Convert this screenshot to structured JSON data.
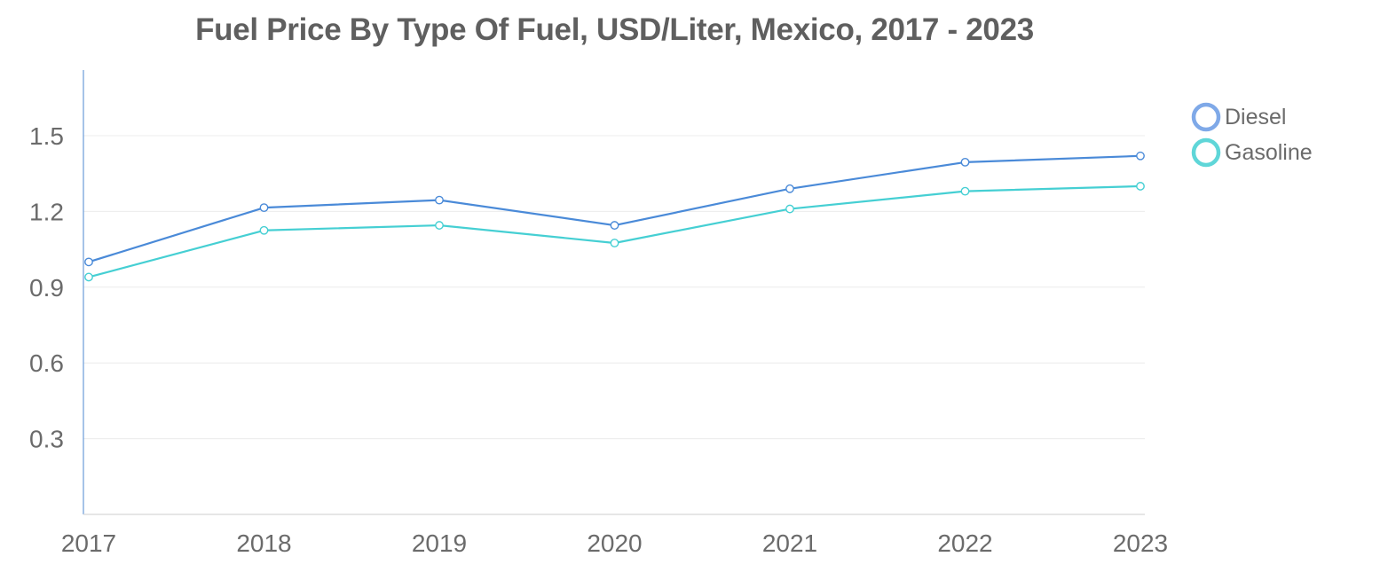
{
  "chart_data": {
    "type": "line",
    "title": "Fuel Price By Type Of Fuel, USD/Liter, Mexico, 2017 - 2023",
    "xlabel": "",
    "ylabel": "",
    "categories": [
      "2017",
      "2018",
      "2019",
      "2020",
      "2021",
      "2022",
      "2023"
    ],
    "y_ticks": [
      "0.3",
      "0.6",
      "0.9",
      "1.2",
      "1.5"
    ],
    "ylim": [
      0,
      1.76
    ],
    "grid": true,
    "legend_position": "top-right",
    "series": [
      {
        "name": "Diesel",
        "color": "#4a8ad8",
        "legend_color": "#7fa9e8",
        "values": [
          1.0,
          1.215,
          1.245,
          1.145,
          1.29,
          1.395,
          1.42
        ]
      },
      {
        "name": "Gasoline",
        "color": "#45cfd3",
        "legend_color": "#5fd6d8",
        "values": [
          0.94,
          1.125,
          1.145,
          1.075,
          1.21,
          1.28,
          1.3
        ]
      }
    ]
  }
}
